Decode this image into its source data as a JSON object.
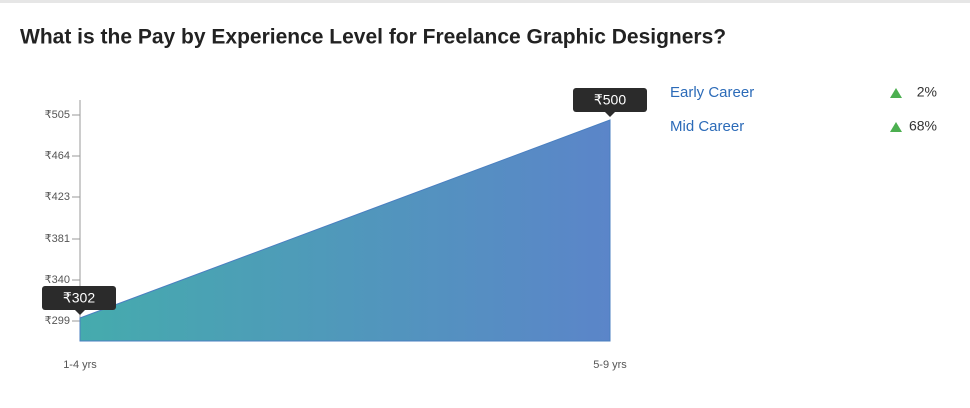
{
  "chart_data": {
    "type": "area",
    "title": "What is the Pay by Experience Level for Freelance Graphic Designers?",
    "categories": [
      "1-4 yrs",
      "5-9 yrs"
    ],
    "values": [
      302,
      500
    ],
    "value_labels": [
      "₹302",
      "₹500"
    ],
    "colors": [
      "#45abad",
      "#5b85c9"
    ],
    "ylim": [
      279,
      520
    ],
    "yticks": [
      {
        "value": 299,
        "label": "₹299"
      },
      {
        "value": 340,
        "label": "₹340"
      },
      {
        "value": 381,
        "label": "₹381"
      },
      {
        "value": 423,
        "label": "₹423"
      },
      {
        "value": 464,
        "label": "₹464"
      },
      {
        "value": 505,
        "label": "₹505"
      }
    ],
    "side_stats": [
      {
        "label": "Early Career",
        "change": "2%"
      },
      {
        "label": "Mid Career",
        "change": "68%"
      }
    ]
  }
}
